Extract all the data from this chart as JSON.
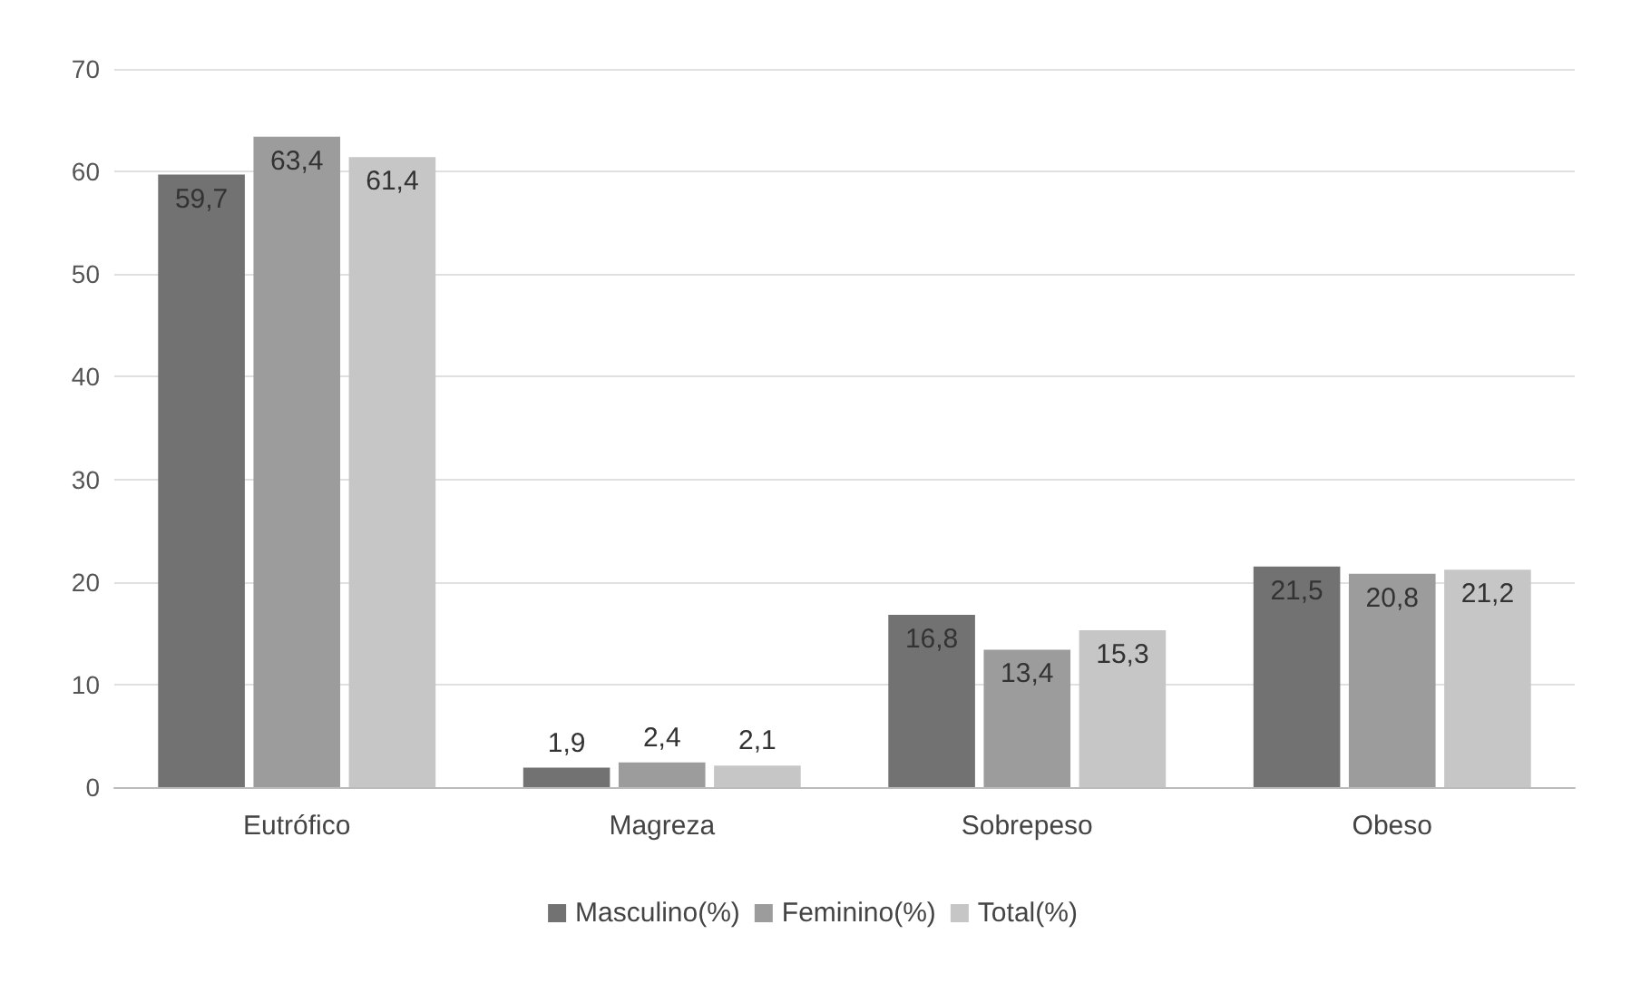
{
  "chart_data": {
    "type": "bar",
    "categories": [
      "Eutrófico",
      "Magreza",
      "Sobrepeso",
      "Obeso"
    ],
    "series": [
      {
        "name": "Masculino(%)",
        "color": "#727272",
        "values": [
          59.7,
          1.9,
          16.8,
          21.5
        ],
        "value_labels": [
          "59,7",
          "1,9",
          "16,8",
          "21,5"
        ]
      },
      {
        "name": "Feminino(%)",
        "color": "#9c9c9c",
        "values": [
          63.4,
          2.4,
          13.4,
          20.8
        ],
        "value_labels": [
          "63,4",
          "2,4",
          "13,4",
          "20,8"
        ]
      },
      {
        "name": "Total(%)",
        "color": "#c6c6c6",
        "values": [
          61.4,
          2.1,
          15.3,
          21.2
        ],
        "value_labels": [
          "61,4",
          "2,1",
          "15,3",
          "21,2"
        ]
      }
    ],
    "ylim": [
      0,
      70
    ],
    "yticks": [
      0,
      10,
      20,
      30,
      40,
      50,
      60,
      70
    ],
    "grid": "y",
    "legend": "bottom"
  }
}
